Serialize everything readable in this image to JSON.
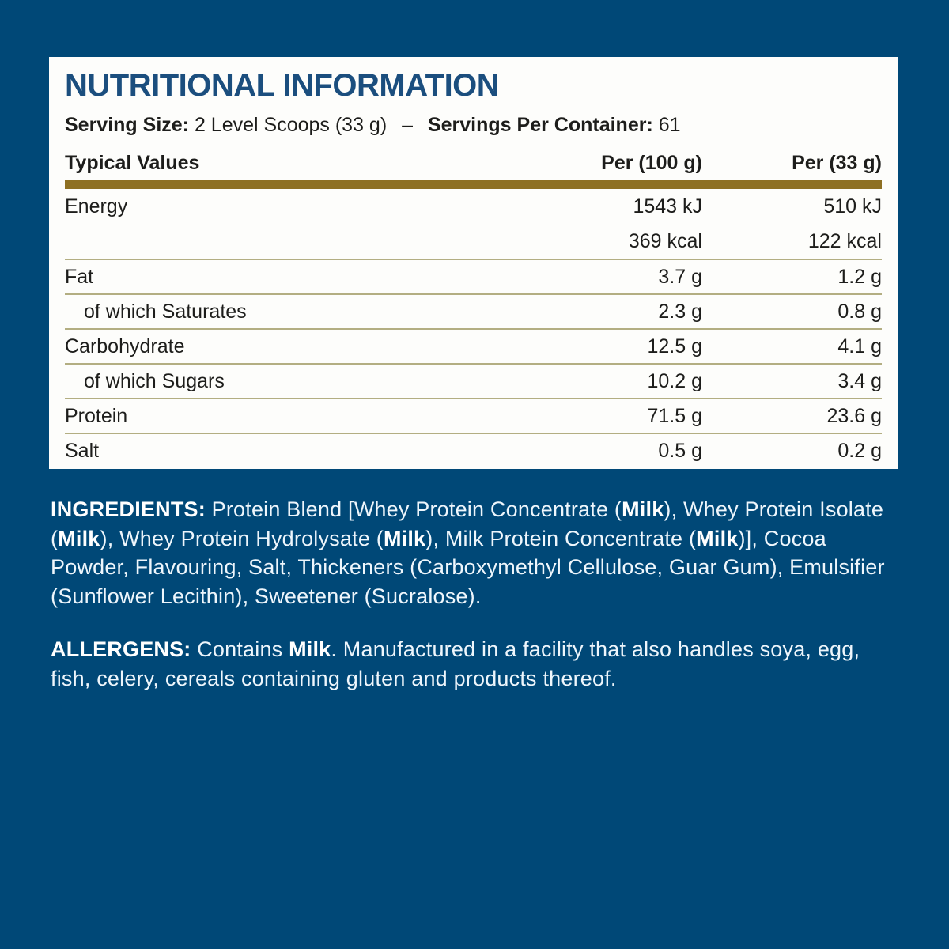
{
  "colors": {
    "background": "#004877",
    "card": "#fdfdfb",
    "title": "#1b4e7e",
    "gold_bar": "#8e7023",
    "thin_divider": "#b3ae82",
    "dark_text": "#1d1d1b",
    "light_text": "#eef6fc"
  },
  "panel": {
    "title": "NUTRITIONAL INFORMATION",
    "serving": {
      "size_label": "Serving Size:",
      "size_value": "2 Level Scoops (33 g)",
      "separator": "–",
      "container_label": "Servings Per Container:",
      "container_value": "61"
    },
    "table": {
      "headers": [
        "Typical Values",
        "Per (100 g)",
        "Per (33 g)"
      ],
      "rows": [
        {
          "label": "Energy",
          "per_100g": "1543 kJ",
          "per_33g": "510 kJ",
          "indent": false,
          "divider_top": false
        },
        {
          "label": "",
          "per_100g": "369 kcal",
          "per_33g": "122 kcal",
          "indent": false,
          "divider_top": false
        },
        {
          "label": "Fat",
          "per_100g": "3.7 g",
          "per_33g": "1.2 g",
          "indent": false,
          "divider_top": true
        },
        {
          "label": "of which Saturates",
          "per_100g": "2.3 g",
          "per_33g": "0.8 g",
          "indent": true,
          "divider_top": true
        },
        {
          "label": "Carbohydrate",
          "per_100g": "12.5 g",
          "per_33g": "4.1 g",
          "indent": false,
          "divider_top": true
        },
        {
          "label": "of which Sugars",
          "per_100g": "10.2 g",
          "per_33g": "3.4 g",
          "indent": true,
          "divider_top": true
        },
        {
          "label": "Protein",
          "per_100g": "71.5 g",
          "per_33g": "23.6 g",
          "indent": false,
          "divider_top": true
        },
        {
          "label": "Salt",
          "per_100g": "0.5 g",
          "per_33g": "0.2 g",
          "indent": false,
          "divider_top": true
        }
      ]
    }
  },
  "ingredients": {
    "label": "INGREDIENTS:",
    "segments": [
      {
        "text": " Protein Blend [Whey Protein Concentrate (",
        "bold": false
      },
      {
        "text": "Milk",
        "bold": true
      },
      {
        "text": "), Whey Protein Isolate (",
        "bold": false
      },
      {
        "text": "Milk",
        "bold": true
      },
      {
        "text": "), Whey Protein Hydrolysate (",
        "bold": false
      },
      {
        "text": "Milk",
        "bold": true
      },
      {
        "text": "), Milk Protein Concentrate (",
        "bold": false
      },
      {
        "text": "Milk",
        "bold": true
      },
      {
        "text": ")], Cocoa Powder, Flavouring, Salt, Thickeners (Carboxymethyl Cellulose, Guar Gum), Emulsifier (Sunflower Lecithin), Sweetener (Sucralose).",
        "bold": false
      }
    ]
  },
  "allergens": {
    "label": "ALLERGENS:",
    "segments": [
      {
        "text": " Contains ",
        "bold": false
      },
      {
        "text": "Milk",
        "bold": true
      },
      {
        "text": ". Manufactured in a facility that also handles soya, egg, fish, celery, cereals containing gluten and products thereof.",
        "bold": false
      }
    ]
  }
}
